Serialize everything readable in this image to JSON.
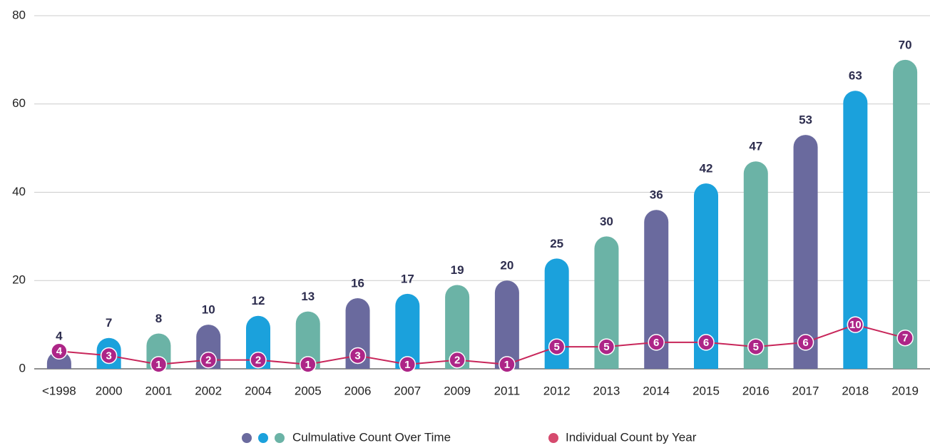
{
  "chart_data": {
    "type": "bar_line",
    "categories": [
      "<1998",
      "2000",
      "2001",
      "2002",
      "2004",
      "2005",
      "2006",
      "2007",
      "2009",
      "2011",
      "2012",
      "2013",
      "2014",
      "2015",
      "2016",
      "2017",
      "2018",
      "2019"
    ],
    "series": [
      {
        "name": "Culmulative Count Over Time",
        "type": "bar",
        "colors": [
          "#6a6a9e",
          "#1ba1dc",
          "#6bb3a6"
        ],
        "values": [
          4,
          7,
          8,
          10,
          12,
          13,
          16,
          17,
          19,
          20,
          25,
          30,
          36,
          42,
          47,
          53,
          63,
          70
        ]
      },
      {
        "name": "Individual Count by Year",
        "type": "line",
        "color": "#c8265a",
        "marker_color": "#ad2587",
        "values": [
          4,
          3,
          1,
          2,
          2,
          1,
          3,
          1,
          2,
          1,
          5,
          5,
          6,
          6,
          5,
          6,
          10,
          7
        ]
      }
    ],
    "ylim": [
      0,
      80
    ],
    "yticks": [
      0,
      20,
      40,
      60,
      80
    ],
    "grid": true
  }
}
